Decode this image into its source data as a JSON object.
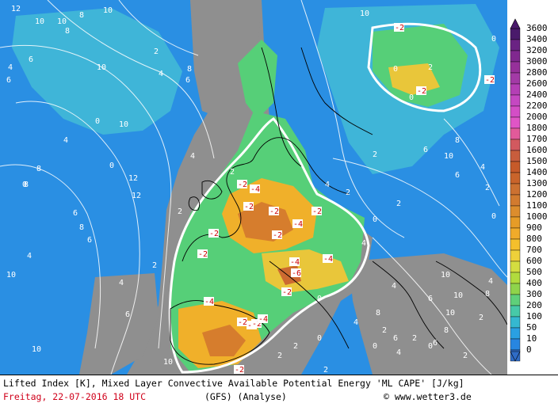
{
  "map": {
    "lifted_index_labels": [
      {
        "v": "12"
      },
      {
        "v": "10"
      },
      {
        "v": "10"
      },
      {
        "v": "8"
      },
      {
        "v": "10"
      },
      {
        "v": "8"
      },
      {
        "v": "6"
      },
      {
        "v": "4"
      },
      {
        "v": "2"
      },
      {
        "v": "4"
      },
      {
        "v": "6"
      },
      {
        "v": "8"
      },
      {
        "v": "10"
      },
      {
        "v": "6"
      },
      {
        "v": "8"
      },
      {
        "v": "10"
      },
      {
        "v": "4"
      },
      {
        "v": "2"
      },
      {
        "v": "8"
      },
      {
        "v": "6"
      },
      {
        "v": "6"
      },
      {
        "v": "4"
      },
      {
        "v": "2"
      },
      {
        "v": "0"
      },
      {
        "v": "10"
      },
      {
        "v": "4"
      },
      {
        "v": "2"
      },
      {
        "v": "6"
      },
      {
        "v": "10"
      },
      {
        "v": "12"
      },
      {
        "v": "12"
      },
      {
        "v": "4"
      },
      {
        "v": "8"
      },
      {
        "v": "10"
      },
      {
        "v": "0"
      },
      {
        "v": "0"
      },
      {
        "v": "-2"
      },
      {
        "v": "-4"
      },
      {
        "v": "-2"
      },
      {
        "v": "-2"
      },
      {
        "v": "-4"
      },
      {
        "v": "-2"
      },
      {
        "v": "-2"
      },
      {
        "v": "-4"
      },
      {
        "v": "-6"
      },
      {
        "v": "-4"
      },
      {
        "v": "-2"
      },
      {
        "v": "-2"
      },
      {
        "v": "-4"
      },
      {
        "v": "-2"
      },
      {
        "v": "-2"
      },
      {
        "v": "-4"
      },
      {
        "v": "-2"
      },
      {
        "v": "-2"
      },
      {
        "v": "0"
      },
      {
        "v": "2"
      },
      {
        "v": "4"
      },
      {
        "v": "0"
      },
      {
        "v": "2"
      },
      {
        "v": "0"
      },
      {
        "v": "-2"
      },
      {
        "v": "-2"
      },
      {
        "v": "-2"
      },
      {
        "v": "0"
      },
      {
        "v": "-2"
      },
      {
        "v": "0"
      },
      {
        "v": "2"
      },
      {
        "v": "4"
      },
      {
        "v": "2"
      },
      {
        "v": "6"
      },
      {
        "v": "8"
      },
      {
        "v": "10"
      },
      {
        "v": "4"
      },
      {
        "v": "6"
      },
      {
        "v": "2"
      },
      {
        "v": "0"
      },
      {
        "v": "4"
      },
      {
        "v": "2"
      },
      {
        "v": "10"
      },
      {
        "v": "6"
      },
      {
        "v": "10"
      },
      {
        "v": "10"
      },
      {
        "v": "4"
      },
      {
        "v": "8"
      },
      {
        "v": "6"
      },
      {
        "v": "4"
      },
      {
        "v": "2"
      },
      {
        "v": "0"
      },
      {
        "v": "8"
      },
      {
        "v": "2"
      },
      {
        "v": "0"
      },
      {
        "v": "4"
      },
      {
        "v": "6"
      },
      {
        "v": "2"
      },
      {
        "v": "8"
      },
      {
        "v": "2"
      },
      {
        "v": "2"
      },
      {
        "v": "0"
      },
      {
        "v": "2"
      },
      {
        "v": "10"
      }
    ]
  },
  "legend": {
    "levels": [
      "3600",
      "3400",
      "3200",
      "3000",
      "2800",
      "2600",
      "2400",
      "2200",
      "2000",
      "1800",
      "1700",
      "1600",
      "1500",
      "1400",
      "1300",
      "1200",
      "1100",
      "1000",
      "900",
      "800",
      "700",
      "600",
      "500",
      "400",
      "300",
      "200",
      "100",
      "50",
      "10",
      "0"
    ],
    "colors": [
      "#4a1a6b",
      "#6a2383",
      "#80288f",
      "#96309a",
      "#a33aa6",
      "#b43fb5",
      "#c548c2",
      "#d44ec6",
      "#e055c6",
      "#e25a9a",
      "#d2595f",
      "#c85d3d",
      "#c65a2a",
      "#c9642b",
      "#cc7131",
      "#d27b2f",
      "#dc8d2d",
      "#e69c27",
      "#f0ab2a",
      "#f4bf2c",
      "#eed13a",
      "#d4dd40",
      "#b1db3d",
      "#8fd44b",
      "#5fd07a",
      "#47c9a8",
      "#35b8d0",
      "#2aa0e2",
      "#2886e0",
      "#2f6cc7"
    ]
  },
  "footer": {
    "line1": "Lifted Index [K], Mixed Layer Convective Available Potential Energy 'ML CAPE' [J/kg]",
    "date": "Freitag, 22-07-2016  18 UTC",
    "model": "(GFS)  (Analyse)",
    "copyright": "© www.wetter3.de"
  }
}
